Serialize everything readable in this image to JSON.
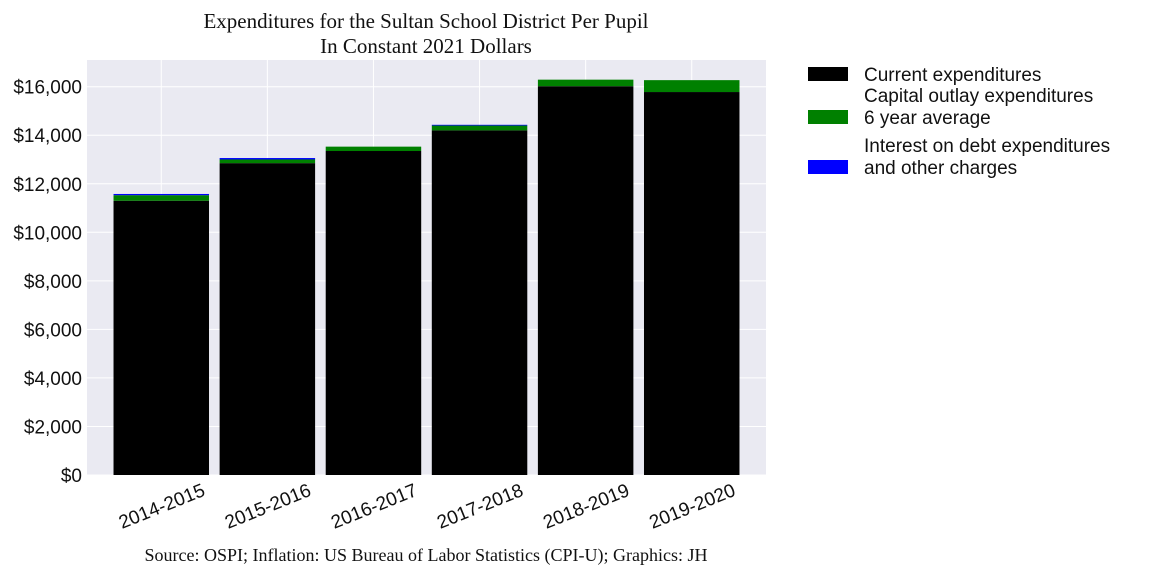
{
  "chart_data": {
    "type": "bar",
    "stacked": true,
    "title": "Expenditures for the Sultan School District Per Pupil",
    "subtitle": "In Constant 2021 Dollars",
    "xlabel": "",
    "ylabel": "",
    "categories": [
      "2014-2015",
      "2015-2016",
      "2016-2017",
      "2017-2018",
      "2018-2019",
      "2019-2020"
    ],
    "series": [
      {
        "name": "Current expenditures",
        "color": "#000000",
        "values": [
          11300,
          12850,
          13350,
          14200,
          16020,
          15780
        ]
      },
      {
        "name": "Capital outlay expenditures\n6 year average",
        "color": "#008000",
        "values": [
          230,
          150,
          180,
          200,
          270,
          490
        ]
      },
      {
        "name": "Interest on debt expenditures\nand other charges",
        "color": "#0000ff",
        "values": [
          50,
          60,
          0,
          30,
          0,
          0
        ]
      }
    ],
    "yticks": [
      0,
      2000,
      4000,
      6000,
      8000,
      10000,
      12000,
      14000,
      16000
    ],
    "ytick_labels": [
      "$0",
      "$2,000",
      "$4,000",
      "$6,000",
      "$8,000",
      "$10,000",
      "$12,000",
      "$14,000",
      "$16,000"
    ],
    "ylim": [
      0,
      17100
    ],
    "grid": true,
    "legend_position": "outside-right",
    "source": "Source: OSPI; Inflation: US Bureau of Labor Statistics (CPI-U); Graphics: JH"
  }
}
